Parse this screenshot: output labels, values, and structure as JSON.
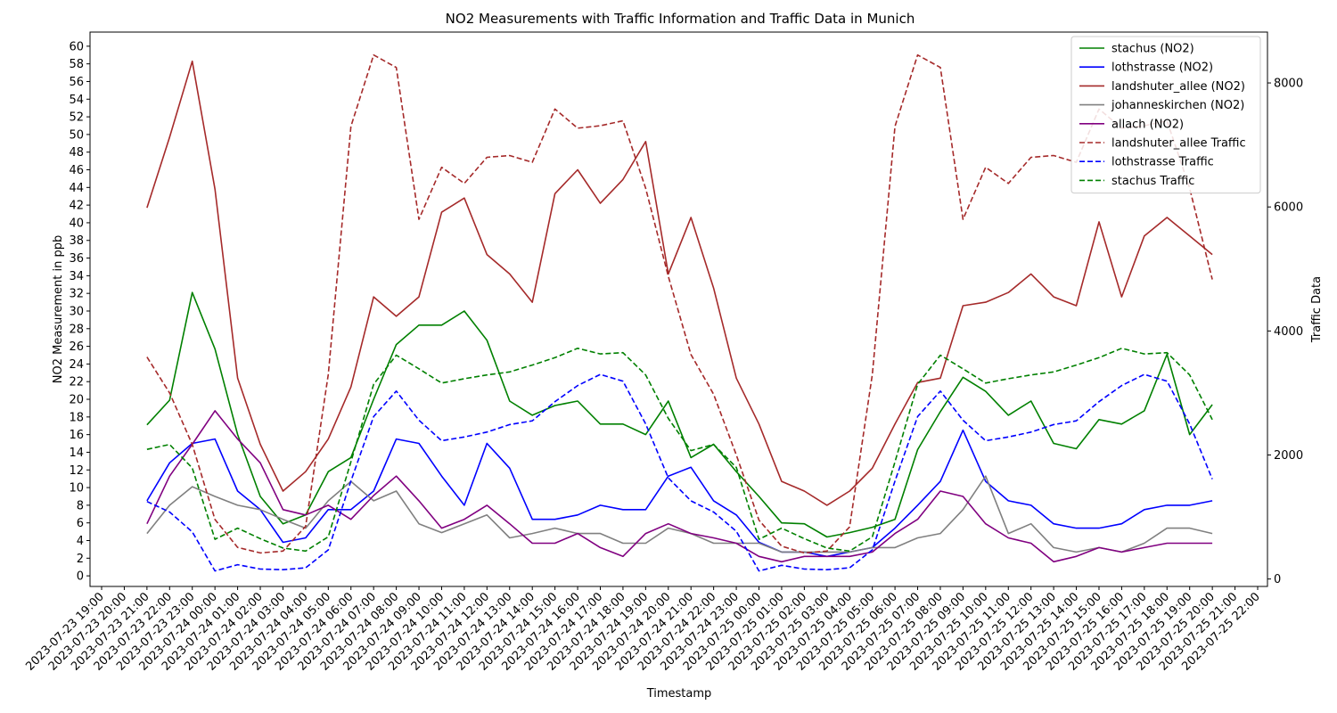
{
  "chart_data": {
    "type": "line",
    "title": "NO2 Measurements with Traffic Information and Traffic Data in Munich",
    "xlabel": "Timestamp",
    "ylabel": "NO2 Measurement in ppb",
    "y2label": "Traffic Data",
    "ylim": [
      -1.2,
      61.6
    ],
    "y2lim": [
      -120,
      8820
    ],
    "yticks": [
      0,
      2,
      4,
      6,
      8,
      10,
      12,
      14,
      16,
      18,
      20,
      22,
      24,
      26,
      28,
      30,
      32,
      34,
      36,
      38,
      40,
      42,
      44,
      46,
      48,
      50,
      52,
      54,
      56,
      58,
      60
    ],
    "y2ticks": [
      0,
      2000,
      4000,
      6000,
      8000
    ],
    "xticks": [
      "2023-07-23 19:00",
      "2023-07-23 20:00",
      "2023-07-23 21:00",
      "2023-07-23 22:00",
      "2023-07-23 23:00",
      "2023-07-24 00:00",
      "2023-07-24 01:00",
      "2023-07-24 02:00",
      "2023-07-24 03:00",
      "2023-07-24 04:00",
      "2023-07-24 05:00",
      "2023-07-24 06:00",
      "2023-07-24 07:00",
      "2023-07-24 08:00",
      "2023-07-24 09:00",
      "2023-07-24 10:00",
      "2023-07-24 11:00",
      "2023-07-24 12:00",
      "2023-07-24 13:00",
      "2023-07-24 14:00",
      "2023-07-24 15:00",
      "2023-07-24 16:00",
      "2023-07-24 17:00",
      "2023-07-24 18:00",
      "2023-07-24 19:00",
      "2023-07-24 20:00",
      "2023-07-24 21:00",
      "2023-07-24 22:00",
      "2023-07-24 23:00",
      "2023-07-25 00:00",
      "2023-07-25 01:00",
      "2023-07-25 02:00",
      "2023-07-25 03:00",
      "2023-07-25 04:00",
      "2023-07-25 05:00",
      "2023-07-25 06:00",
      "2023-07-25 07:00",
      "2023-07-25 08:00",
      "2023-07-25 09:00",
      "2023-07-25 10:00",
      "2023-07-25 11:00",
      "2023-07-25 12:00",
      "2023-07-25 13:00",
      "2023-07-25 14:00",
      "2023-07-25 15:00",
      "2023-07-25 16:00",
      "2023-07-25 17:00",
      "2023-07-25 18:00",
      "2023-07-25 19:00",
      "2023-07-25 20:00",
      "2023-07-25 21:00",
      "2023-07-25 22:00"
    ],
    "x": [
      "2023-07-23 21:00",
      "2023-07-23 22:00",
      "2023-07-23 23:00",
      "2023-07-24 00:00",
      "2023-07-24 01:00",
      "2023-07-24 02:00",
      "2023-07-24 03:00",
      "2023-07-24 04:00",
      "2023-07-24 05:00",
      "2023-07-24 06:00",
      "2023-07-24 07:00",
      "2023-07-24 08:00",
      "2023-07-24 09:00",
      "2023-07-24 10:00",
      "2023-07-24 11:00",
      "2023-07-24 12:00",
      "2023-07-24 13:00",
      "2023-07-24 14:00",
      "2023-07-24 15:00",
      "2023-07-24 16:00",
      "2023-07-24 17:00",
      "2023-07-24 18:00",
      "2023-07-24 19:00",
      "2023-07-24 20:00",
      "2023-07-24 21:00",
      "2023-07-24 22:00",
      "2023-07-24 23:00",
      "2023-07-25 00:00",
      "2023-07-25 01:00",
      "2023-07-25 02:00",
      "2023-07-25 03:00",
      "2023-07-25 04:00",
      "2023-07-25 05:00",
      "2023-07-25 06:00",
      "2023-07-25 07:00",
      "2023-07-25 08:00",
      "2023-07-25 09:00",
      "2023-07-25 10:00",
      "2023-07-25 11:00",
      "2023-07-25 12:00",
      "2023-07-25 13:00",
      "2023-07-25 14:00",
      "2023-07-25 15:00",
      "2023-07-25 16:00",
      "2023-07-25 17:00",
      "2023-07-25 18:00",
      "2023-07-25 19:00",
      "2023-07-25 20:00"
    ],
    "series": [
      {
        "name": "stachus (NO2)",
        "axis": "left",
        "color": "#008000",
        "dash": "solid",
        "values": [
          17.1,
          19.9,
          32.1,
          25.7,
          16.0,
          9.0,
          5.9,
          6.9,
          11.8,
          13.4,
          20.0,
          26.2,
          28.4,
          28.4,
          30.0,
          26.7,
          19.8,
          18.2,
          19.3,
          19.8,
          17.2,
          17.2,
          16.0,
          19.8,
          13.4,
          14.9,
          11.8,
          9.0,
          6.0,
          5.9,
          4.4,
          4.9,
          5.5,
          6.4,
          14.3,
          18.6,
          22.5,
          20.9,
          18.2,
          19.8,
          15.0,
          14.4,
          17.7,
          17.2,
          18.7,
          25.1,
          16.0,
          19.4
        ]
      },
      {
        "name": "lothstrasse (NO2)",
        "axis": "left",
        "color": "#0000ff",
        "dash": "solid",
        "values": [
          8.5,
          12.8,
          15.0,
          15.5,
          9.6,
          7.5,
          3.8,
          4.3,
          7.5,
          7.5,
          9.6,
          15.5,
          15.0,
          11.3,
          8.0,
          15.0,
          12.2,
          6.4,
          6.4,
          6.9,
          8.0,
          7.5,
          7.5,
          11.3,
          12.3,
          8.5,
          6.9,
          3.8,
          2.7,
          2.7,
          2.2,
          2.7,
          3.2,
          5.4,
          8.0,
          10.7,
          16.5,
          10.7,
          8.5,
          8.0,
          5.9,
          5.4,
          5.4,
          5.9,
          7.5,
          8.0,
          8.0,
          8.5
        ]
      },
      {
        "name": "landshuter_allee (NO2)",
        "axis": "left",
        "color": "#a52a2a",
        "dash": "solid",
        "values": [
          41.7,
          49.7,
          58.3,
          43.8,
          22.4,
          14.9,
          9.6,
          11.8,
          15.5,
          21.4,
          31.6,
          29.4,
          31.6,
          41.2,
          42.8,
          36.4,
          34.2,
          31.0,
          43.3,
          46.0,
          42.2,
          44.9,
          49.2,
          34.2,
          40.6,
          32.6,
          22.4,
          17.2,
          10.7,
          9.6,
          8.0,
          9.6,
          12.2,
          17.2,
          21.9,
          22.4,
          30.6,
          31.0,
          32.1,
          34.2,
          31.6,
          30.6,
          40.1,
          31.6,
          38.5,
          40.6,
          38.5,
          36.4
        ]
      },
      {
        "name": "johanneskirchen (NO2)",
        "axis": "left",
        "color": "#808080",
        "dash": "solid",
        "values": [
          4.8,
          8.0,
          10.1,
          9.0,
          8.0,
          7.5,
          6.4,
          5.4,
          8.5,
          10.7,
          8.5,
          9.6,
          5.9,
          4.9,
          5.9,
          6.9,
          4.3,
          4.8,
          5.4,
          4.8,
          4.8,
          3.7,
          3.7,
          5.4,
          4.8,
          3.7,
          3.7,
          3.7,
          2.7,
          2.7,
          2.7,
          2.7,
          3.2,
          3.2,
          4.3,
          4.8,
          7.5,
          11.3,
          4.8,
          5.9,
          3.2,
          2.7,
          3.2,
          2.7,
          3.7,
          5.4,
          5.4,
          4.8
        ]
      },
      {
        "name": "allach (NO2)",
        "axis": "left",
        "color": "#800080",
        "dash": "solid",
        "values": [
          5.9,
          11.3,
          14.9,
          18.7,
          15.5,
          12.8,
          7.5,
          6.9,
          8.0,
          6.4,
          9.1,
          11.3,
          8.5,
          5.4,
          6.4,
          8.0,
          5.9,
          3.7,
          3.7,
          4.8,
          3.2,
          2.2,
          4.8,
          5.9,
          4.8,
          4.3,
          3.7,
          2.2,
          1.6,
          2.2,
          2.2,
          2.2,
          2.7,
          4.8,
          6.4,
          9.6,
          9.0,
          5.9,
          4.3,
          3.7,
          1.6,
          2.2,
          3.2,
          2.7,
          3.2,
          3.7,
          3.7,
          3.7
        ]
      },
      {
        "name": "landshuter_allee Traffic",
        "axis": "right",
        "color": "#a52a2a",
        "dash": "dashed",
        "values": [
          3580,
          3000,
          2170,
          960,
          510,
          420,
          450,
          850,
          3300,
          7300,
          8450,
          8250,
          5800,
          6640,
          6380,
          6800,
          6830,
          6720,
          7580,
          7270,
          7310,
          7390,
          6300,
          4880,
          3620,
          2980,
          2000,
          950,
          530,
          420,
          450,
          840,
          3300,
          7300,
          8450,
          8250,
          5800,
          6640,
          6380,
          6800,
          6830,
          6720,
          7580,
          7270,
          7310,
          7390,
          6300,
          4830
        ]
      },
      {
        "name": "lothstrasse Traffic",
        "axis": "right",
        "color": "#0000ff",
        "dash": "dashed",
        "values": [
          1250,
          1080,
          760,
          130,
          230,
          160,
          150,
          180,
          470,
          1580,
          2620,
          3030,
          2560,
          2230,
          2290,
          2370,
          2490,
          2550,
          2860,
          3120,
          3300,
          3190,
          2500,
          1630,
          1260,
          1080,
          770,
          130,
          220,
          160,
          150,
          180,
          470,
          1580,
          2620,
          3030,
          2560,
          2230,
          2290,
          2370,
          2490,
          2550,
          2860,
          3120,
          3300,
          3190,
          2500,
          1610
        ]
      },
      {
        "name": "stachus Traffic",
        "axis": "right",
        "color": "#008000",
        "dash": "dashed",
        "values": [
          2090,
          2170,
          1790,
          640,
          820,
          650,
          500,
          450,
          680,
          1890,
          3140,
          3610,
          3390,
          3160,
          3230,
          3290,
          3340,
          3450,
          3570,
          3720,
          3630,
          3650,
          3290,
          2590,
          2070,
          2170,
          1800,
          640,
          820,
          650,
          500,
          450,
          680,
          1890,
          3140,
          3610,
          3390,
          3160,
          3230,
          3290,
          3340,
          3450,
          3570,
          3720,
          3630,
          3650,
          3290,
          2570
        ]
      }
    ],
    "legend_position": "top-right",
    "grid": false
  }
}
